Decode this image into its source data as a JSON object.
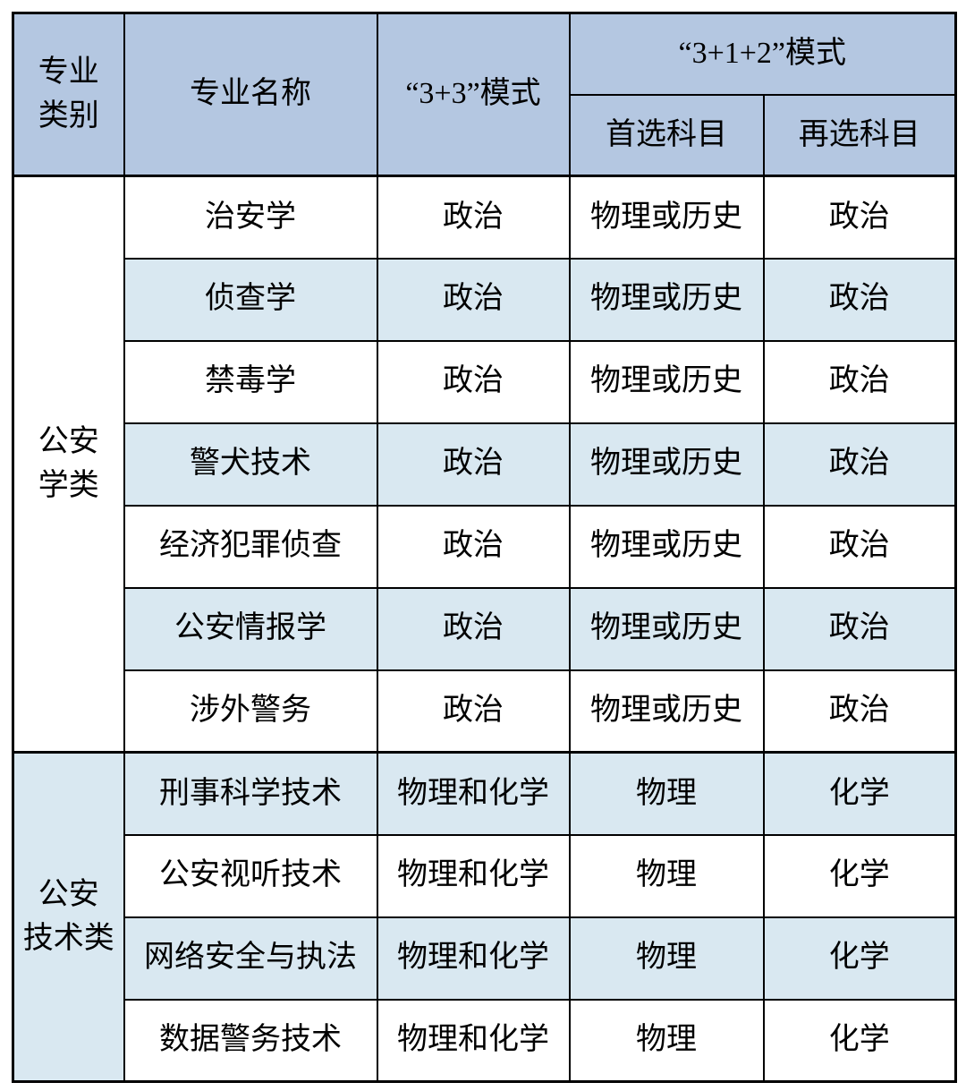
{
  "colors": {
    "header_bg": "#B4C7E1",
    "alt_row_bg": "#D9E8F1",
    "row_bg": "#FFFFFF",
    "border": "#000000",
    "text": "#000000"
  },
  "table": {
    "headers": {
      "category": "专业\n类别",
      "major_name": "专业名称",
      "mode_33": "“3+3”模式",
      "mode_312": "“3+1+2”模式",
      "first_subject": "首选科目",
      "second_subject": "再选科目"
    },
    "groups": [
      {
        "category": "公安\n学类",
        "rows": [
          {
            "major": "治安学",
            "mode33": "政治",
            "first": "物理或历史",
            "second": "政治"
          },
          {
            "major": "侦查学",
            "mode33": "政治",
            "first": "物理或历史",
            "second": "政治"
          },
          {
            "major": "禁毒学",
            "mode33": "政治",
            "first": "物理或历史",
            "second": "政治"
          },
          {
            "major": "警犬技术",
            "mode33": "政治",
            "first": "物理或历史",
            "second": "政治"
          },
          {
            "major": "经济犯罪侦查",
            "mode33": "政治",
            "first": "物理或历史",
            "second": "政治"
          },
          {
            "major": "公安情报学",
            "mode33": "政治",
            "first": "物理或历史",
            "second": "政治"
          },
          {
            "major": "涉外警务",
            "mode33": "政治",
            "first": "物理或历史",
            "second": "政治"
          }
        ]
      },
      {
        "category": "公安\n技术类",
        "rows": [
          {
            "major": "刑事科学技术",
            "mode33": "物理和化学",
            "first": "物理",
            "second": "化学"
          },
          {
            "major": "公安视听技术",
            "mode33": "物理和化学",
            "first": "物理",
            "second": "化学"
          },
          {
            "major": "网络安全与执法",
            "mode33": "物理和化学",
            "first": "物理",
            "second": "化学"
          },
          {
            "major": "数据警务技术",
            "mode33": "物理和化学",
            "first": "物理",
            "second": "化学"
          }
        ]
      }
    ]
  }
}
